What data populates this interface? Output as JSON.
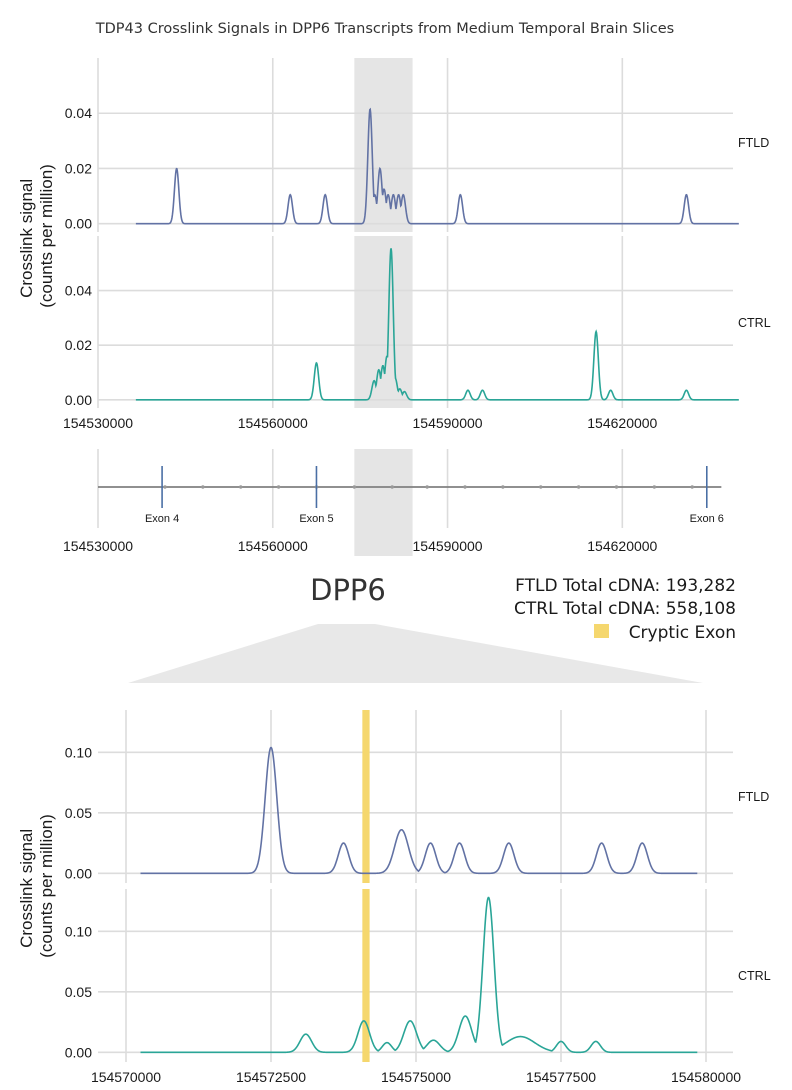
{
  "title": "TDP43 Crosslink Signals in DPP6 Transcripts from Medium Temporal Brain Slices",
  "ylabel_line1": "Crosslink signal",
  "ylabel_line2": "(counts per million)",
  "gene_name": "DPP6",
  "totals": {
    "ftld": "FTLD Total cDNA: 193,282",
    "ctrl": "CTRL Total cDNA: 558,108"
  },
  "legend": {
    "cryptic_exon": "Cryptic Exon"
  },
  "colors": {
    "ftld": "#6272a4",
    "ctrl": "#2aa597",
    "cryptic_exon": "#f5d76e",
    "highlight": "#e5e5e5",
    "grid": "#dcdcdc",
    "gene_line": "#808080",
    "exon_mark": "#4a6fa5"
  },
  "chart_data": [
    {
      "type": "line",
      "panel": "overview",
      "xlim": [
        154530000,
        154639000
      ],
      "x_ticks": [
        154530000,
        154560000,
        154590000,
        154620000
      ],
      "x_tick_labels": [
        "154530000",
        "154560000",
        "154590000",
        "154620000"
      ],
      "highlight_region": [
        154574000,
        154584000
      ],
      "facets": [
        {
          "name": "FTLD",
          "ylim": [
            -0.003,
            0.06
          ],
          "y_ticks": [
            0.0,
            0.02,
            0.04
          ],
          "y_tick_labels": [
            "0.00",
            "0.02",
            "0.04"
          ],
          "baseline_range": [
            154536500,
            154640000
          ],
          "peaks": [
            {
              "x": 154543500,
              "y": 0.02
            },
            {
              "x": 154563000,
              "y": 0.0105
            },
            {
              "x": 154569000,
              "y": 0.0105
            },
            {
              "x": 154576700,
              "y": 0.0415
            },
            {
              "x": 154577500,
              "y": 0.0105
            },
            {
              "x": 154578400,
              "y": 0.02
            },
            {
              "x": 154579100,
              "y": 0.0125
            },
            {
              "x": 154579800,
              "y": 0.0105
            },
            {
              "x": 154580700,
              "y": 0.0105
            },
            {
              "x": 154581600,
              "y": 0.0105
            },
            {
              "x": 154582400,
              "y": 0.0105
            },
            {
              "x": 154592200,
              "y": 0.0105
            },
            {
              "x": 154631000,
              "y": 0.0105
            }
          ]
        },
        {
          "name": "CTRL",
          "ylim": [
            -0.003,
            0.06
          ],
          "y_ticks": [
            0.0,
            0.02,
            0.04
          ],
          "y_tick_labels": [
            "0.00",
            "0.02",
            "0.04"
          ],
          "baseline_range": [
            154536500,
            154640000
          ],
          "peaks": [
            {
              "x": 154567500,
              "y": 0.0135
            },
            {
              "x": 154577400,
              "y": 0.007
            },
            {
              "x": 154578200,
              "y": 0.011
            },
            {
              "x": 154578900,
              "y": 0.0125
            },
            {
              "x": 154579600,
              "y": 0.016
            },
            {
              "x": 154580300,
              "y": 0.0555
            },
            {
              "x": 154581000,
              "y": 0.008
            },
            {
              "x": 154581800,
              "y": 0.004
            },
            {
              "x": 154582600,
              "y": 0.003
            },
            {
              "x": 154593500,
              "y": 0.0035
            },
            {
              "x": 154596000,
              "y": 0.0035
            },
            {
              "x": 154615500,
              "y": 0.025
            },
            {
              "x": 154618000,
              "y": 0.0035
            },
            {
              "x": 154631000,
              "y": 0.0035
            }
          ]
        }
      ]
    },
    {
      "type": "diagram",
      "panel": "gene_track",
      "xlim": [
        154530000,
        154639000
      ],
      "x_ticks": [
        154530000,
        154560000,
        154590000,
        154620000
      ],
      "x_tick_labels": [
        "154530000",
        "154560000",
        "154590000",
        "154620000"
      ],
      "line_range": [
        154530000,
        154637000
      ],
      "exons": [
        {
          "label": "Exon 4",
          "x": 154541000
        },
        {
          "label": "Exon 5",
          "x": 154567500
        },
        {
          "label": "Exon 6",
          "x": 154634500
        }
      ],
      "strand_markers": [
        154541500,
        154548000,
        154554500,
        154561000,
        154567500,
        154574000,
        154580500,
        154586500,
        154593000,
        154599500,
        154606000,
        154612500,
        154619000,
        154625500,
        154632000
      ]
    },
    {
      "type": "line",
      "panel": "zoom",
      "xlim": [
        154570000,
        154580000
      ],
      "x_ticks": [
        154570000,
        154572500,
        154575000,
        154577500,
        154580000
      ],
      "x_tick_labels": [
        "154570000",
        "154572500",
        "154575000",
        "154577500",
        "154580000"
      ],
      "cryptic_exon_range": [
        154574075,
        154574200
      ],
      "facets": [
        {
          "name": "FTLD",
          "ylim": [
            -0.008,
            0.135
          ],
          "y_ticks": [
            0.0,
            0.05,
            0.1
          ],
          "y_tick_labels": [
            "0.00",
            "0.05",
            "0.10"
          ],
          "baseline_range": [
            154570250,
            154579850
          ],
          "peaks": [
            {
              "x": 154572500,
              "y": 0.104,
              "w": 100
            },
            {
              "x": 154573750,
              "y": 0.025,
              "w": 90
            },
            {
              "x": 154574750,
              "y": 0.036,
              "w": 120
            },
            {
              "x": 154575250,
              "y": 0.025,
              "w": 90
            },
            {
              "x": 154575750,
              "y": 0.025,
              "w": 90
            },
            {
              "x": 154576600,
              "y": 0.025,
              "w": 90
            },
            {
              "x": 154578200,
              "y": 0.025,
              "w": 90
            },
            {
              "x": 154578900,
              "y": 0.025,
              "w": 90
            }
          ]
        },
        {
          "name": "CTRL",
          "ylim": [
            -0.008,
            0.135
          ],
          "y_ticks": [
            0.0,
            0.05,
            0.1
          ],
          "y_tick_labels": [
            "0.00",
            "0.05",
            "0.10"
          ],
          "baseline_range": [
            154570250,
            154579850
          ],
          "peaks": [
            {
              "x": 154573100,
              "y": 0.015,
              "w": 100
            },
            {
              "x": 154574100,
              "y": 0.026,
              "w": 100
            },
            {
              "x": 154574500,
              "y": 0.008,
              "w": 80
            },
            {
              "x": 154574900,
              "y": 0.026,
              "w": 110
            },
            {
              "x": 154575300,
              "y": 0.01,
              "w": 110
            },
            {
              "x": 154575850,
              "y": 0.03,
              "w": 110
            },
            {
              "x": 154576250,
              "y": 0.128,
              "w": 95
            },
            {
              "x": 154576800,
              "y": 0.013,
              "w": 250
            },
            {
              "x": 154577500,
              "y": 0.009,
              "w": 80
            },
            {
              "x": 154578100,
              "y": 0.009,
              "w": 80
            }
          ]
        }
      ]
    }
  ]
}
